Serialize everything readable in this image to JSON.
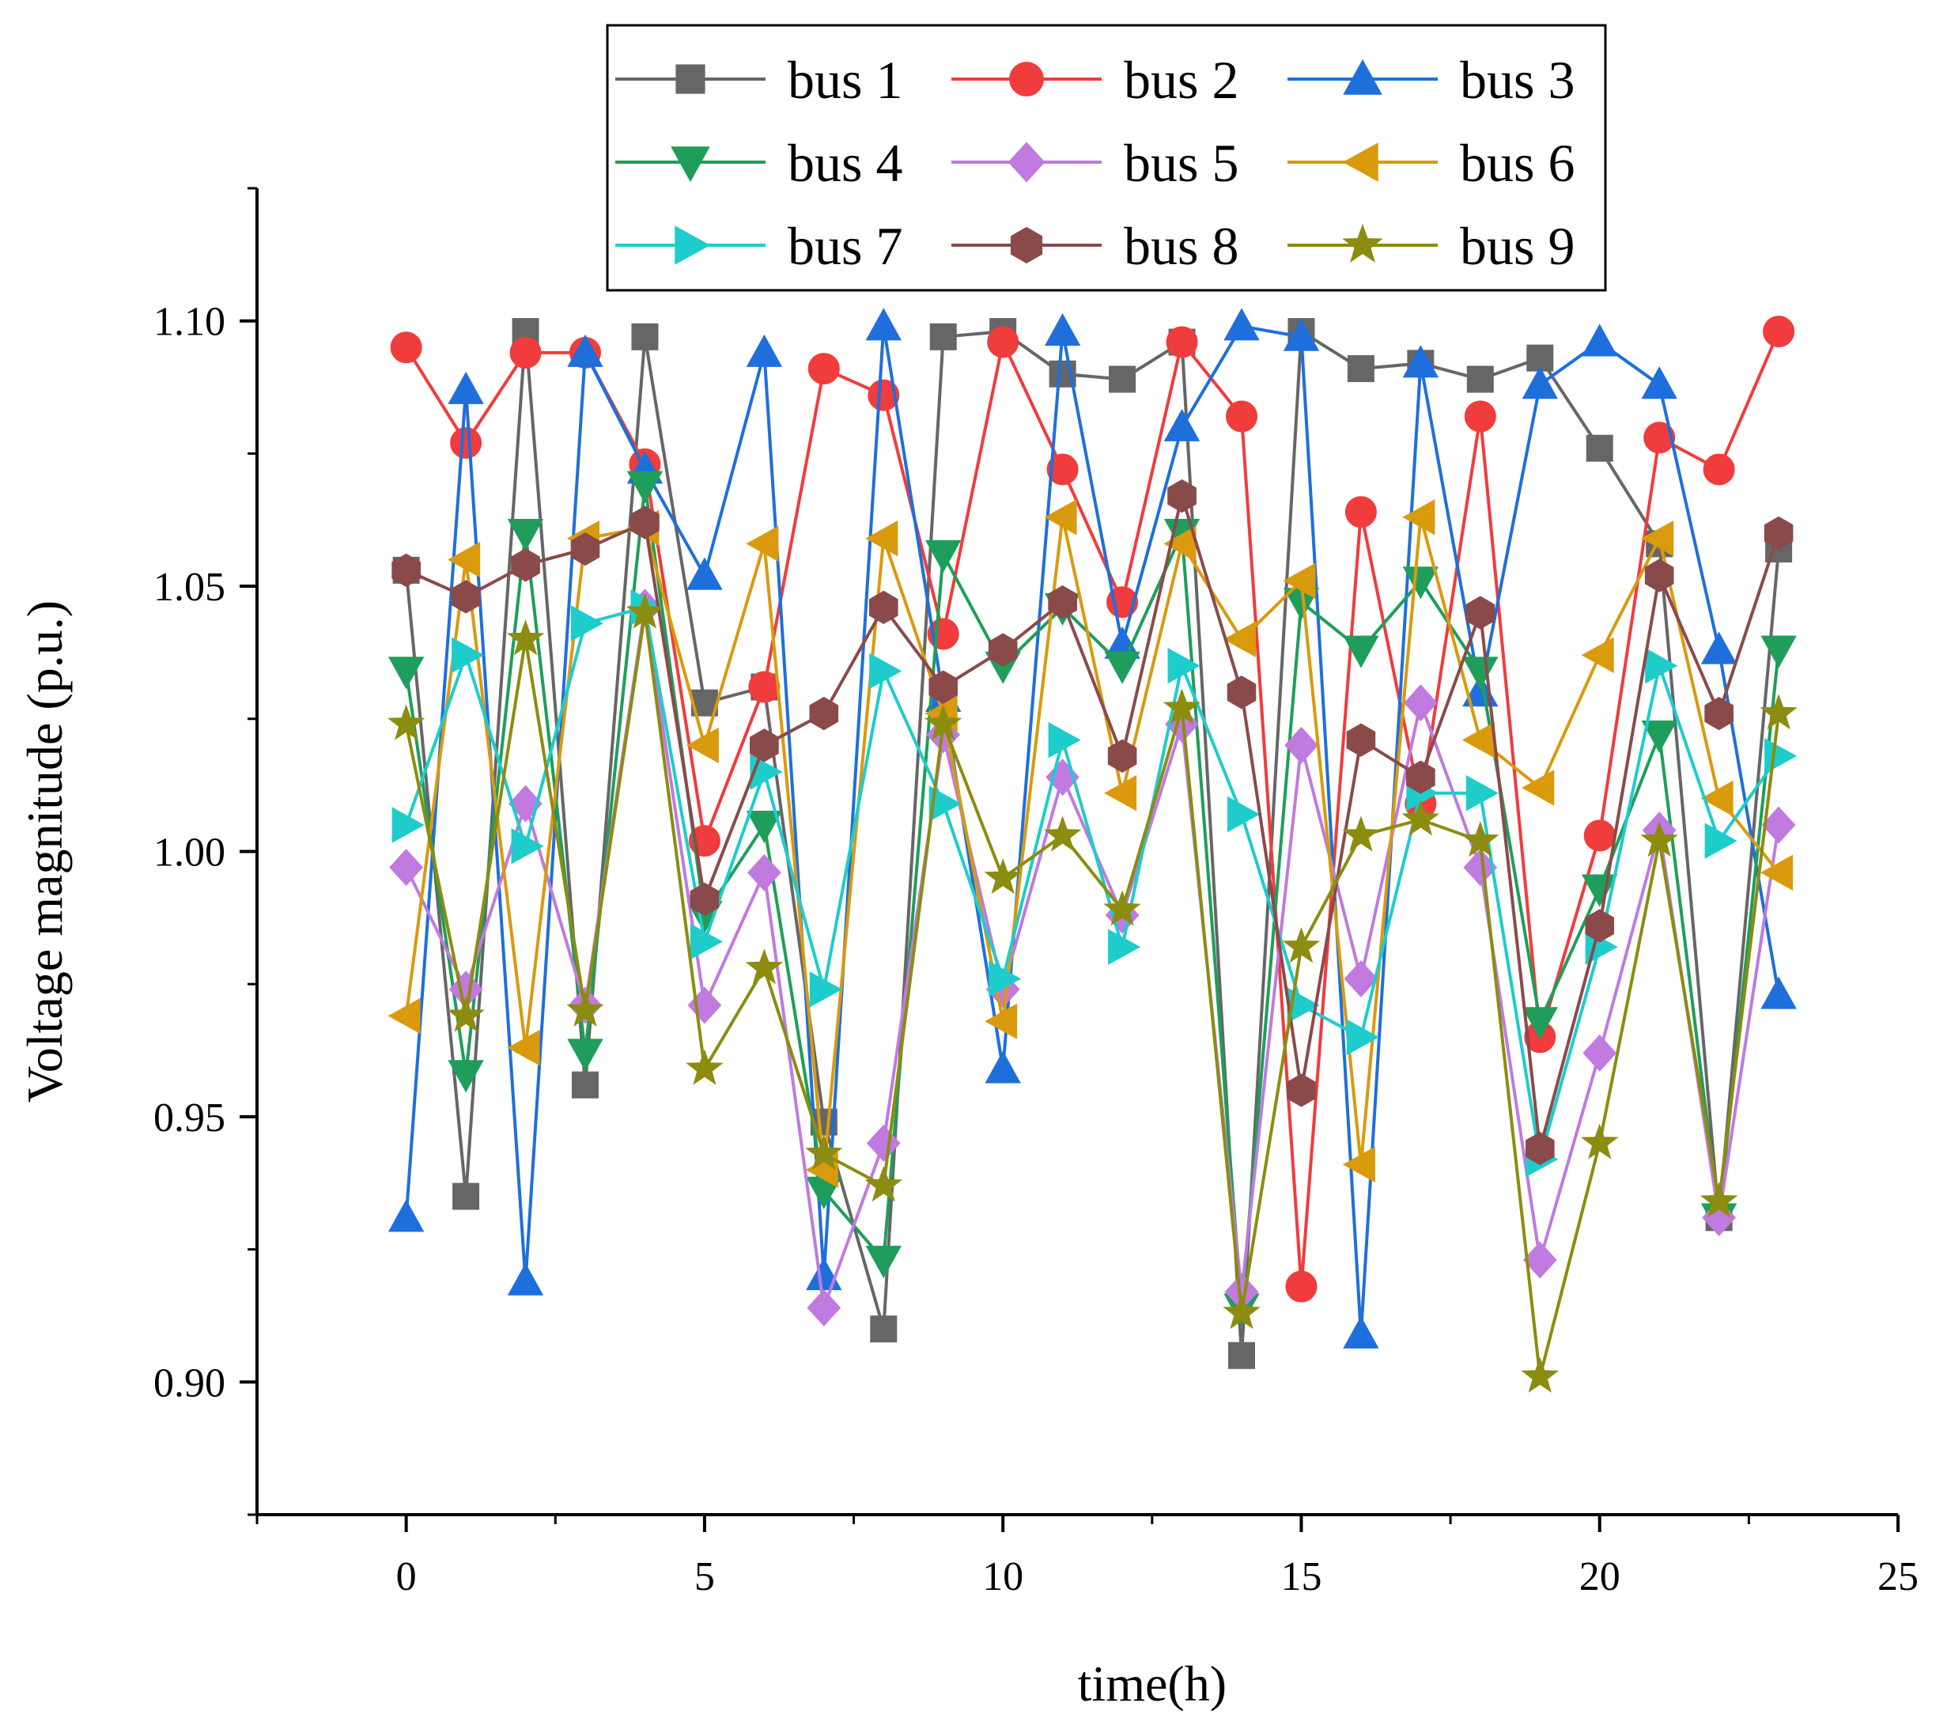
{
  "chart_data": {
    "type": "line",
    "title": "",
    "xlabel": "time(h)",
    "ylabel": "Voltage magnitude (p.u.)",
    "xlim": [
      -2.5,
      25
    ],
    "ylim": [
      0.875,
      1.125
    ],
    "xticks": [
      0,
      5,
      10,
      15,
      20,
      25
    ],
    "xtick_labels": [
      "0",
      "5",
      "10",
      "15",
      "20",
      "25"
    ],
    "yticks": [
      0.9,
      0.95,
      1.0,
      1.05,
      1.1
    ],
    "ytick_labels": [
      "0.90",
      "0.95",
      "1.00",
      "1.05",
      "1.10"
    ],
    "grid": false,
    "legend_position": "top",
    "x": [
      0,
      1,
      2,
      3,
      4,
      5,
      6,
      7,
      8,
      9,
      10,
      11,
      12,
      13,
      14,
      15,
      16,
      17,
      18,
      19,
      20,
      21,
      22,
      23
    ],
    "series": [
      {
        "name": "bus 1",
        "color": "#666666",
        "marker": "square",
        "values": [
          1.053,
          0.935,
          1.098,
          0.956,
          1.097,
          1.028,
          1.031,
          0.949,
          0.91,
          1.097,
          1.098,
          1.09,
          1.089,
          1.096,
          0.905,
          1.098,
          1.091,
          1.092,
          1.089,
          1.093,
          1.076,
          1.058,
          0.931,
          1.057
        ]
      },
      {
        "name": "bus 2",
        "color": "#f03c3c",
        "marker": "circle",
        "values": [
          1.095,
          1.077,
          1.094,
          1.094,
          1.073,
          1.002,
          1.031,
          1.091,
          1.086,
          1.041,
          1.096,
          1.072,
          1.047,
          1.096,
          1.082,
          0.918,
          1.064,
          1.009,
          1.082,
          0.965,
          1.003,
          1.078,
          1.072,
          1.098
        ]
      },
      {
        "name": "bus 3",
        "color": "#1e6fdc",
        "marker": "triangle-up",
        "values": [
          0.931,
          1.087,
          0.919,
          1.094,
          1.072,
          1.052,
          1.094,
          0.92,
          1.099,
          1.029,
          0.959,
          1.098,
          1.039,
          1.08,
          1.099,
          1.097,
          0.909,
          1.092,
          1.03,
          1.088,
          1.096,
          1.088,
          1.038,
          0.973
        ]
      },
      {
        "name": "bus 4",
        "color": "#1e9e5a",
        "marker": "triangle-down",
        "values": [
          1.034,
          0.958,
          1.06,
          0.962,
          1.069,
          0.988,
          1.005,
          0.936,
          0.923,
          1.056,
          1.035,
          1.046,
          1.035,
          1.06,
          0.914,
          1.047,
          1.038,
          1.051,
          1.034,
          0.968,
          0.993,
          1.022,
          0.931,
          1.038
        ]
      },
      {
        "name": "bus 5",
        "color": "#c07ae0",
        "marker": "diamond",
        "values": [
          0.997,
          0.974,
          1.009,
          0.971,
          1.046,
          0.971,
          0.996,
          0.914,
          0.945,
          1.022,
          0.974,
          1.014,
          0.988,
          1.024,
          0.917,
          1.02,
          0.976,
          1.028,
          0.997,
          0.923,
          0.962,
          1.004,
          0.931,
          1.005
        ]
      },
      {
        "name": "bus 6",
        "color": "#d99a0e",
        "marker": "triangle-left",
        "values": [
          0.969,
          1.055,
          0.963,
          1.059,
          1.061,
          1.02,
          1.058,
          0.94,
          1.059,
          1.026,
          0.968,
          1.063,
          1.011,
          1.058,
          1.04,
          1.051,
          0.941,
          1.063,
          1.021,
          1.012,
          1.037,
          1.059,
          1.01,
          0.996
        ]
      },
      {
        "name": "bus 7",
        "color": "#1ecccc",
        "marker": "triangle-right",
        "values": [
          1.005,
          1.037,
          1.001,
          1.043,
          1.046,
          0.983,
          1.015,
          0.974,
          1.034,
          1.009,
          0.976,
          1.021,
          0.982,
          1.035,
          1.007,
          0.971,
          0.965,
          1.011,
          1.011,
          0.942,
          0.982,
          1.035,
          1.002,
          1.018
        ]
      },
      {
        "name": "bus 8",
        "color": "#8b4a4a",
        "marker": "hexagon",
        "values": [
          1.053,
          1.048,
          1.054,
          1.057,
          1.062,
          0.991,
          1.02,
          1.026,
          1.046,
          1.031,
          1.038,
          1.047,
          1.018,
          1.067,
          1.03,
          0.955,
          1.021,
          1.014,
          1.045,
          0.944,
          0.986,
          1.052,
          1.026,
          1.06
        ]
      },
      {
        "name": "bus 9",
        "color": "#8c8c10",
        "marker": "star",
        "values": [
          1.024,
          0.969,
          1.04,
          0.97,
          1.045,
          0.959,
          0.978,
          0.943,
          0.937,
          1.024,
          0.995,
          1.003,
          0.989,
          1.027,
          0.913,
          0.982,
          1.003,
          1.006,
          1.002,
          0.901,
          0.945,
          1.002,
          0.934,
          1.026
        ]
      }
    ]
  }
}
